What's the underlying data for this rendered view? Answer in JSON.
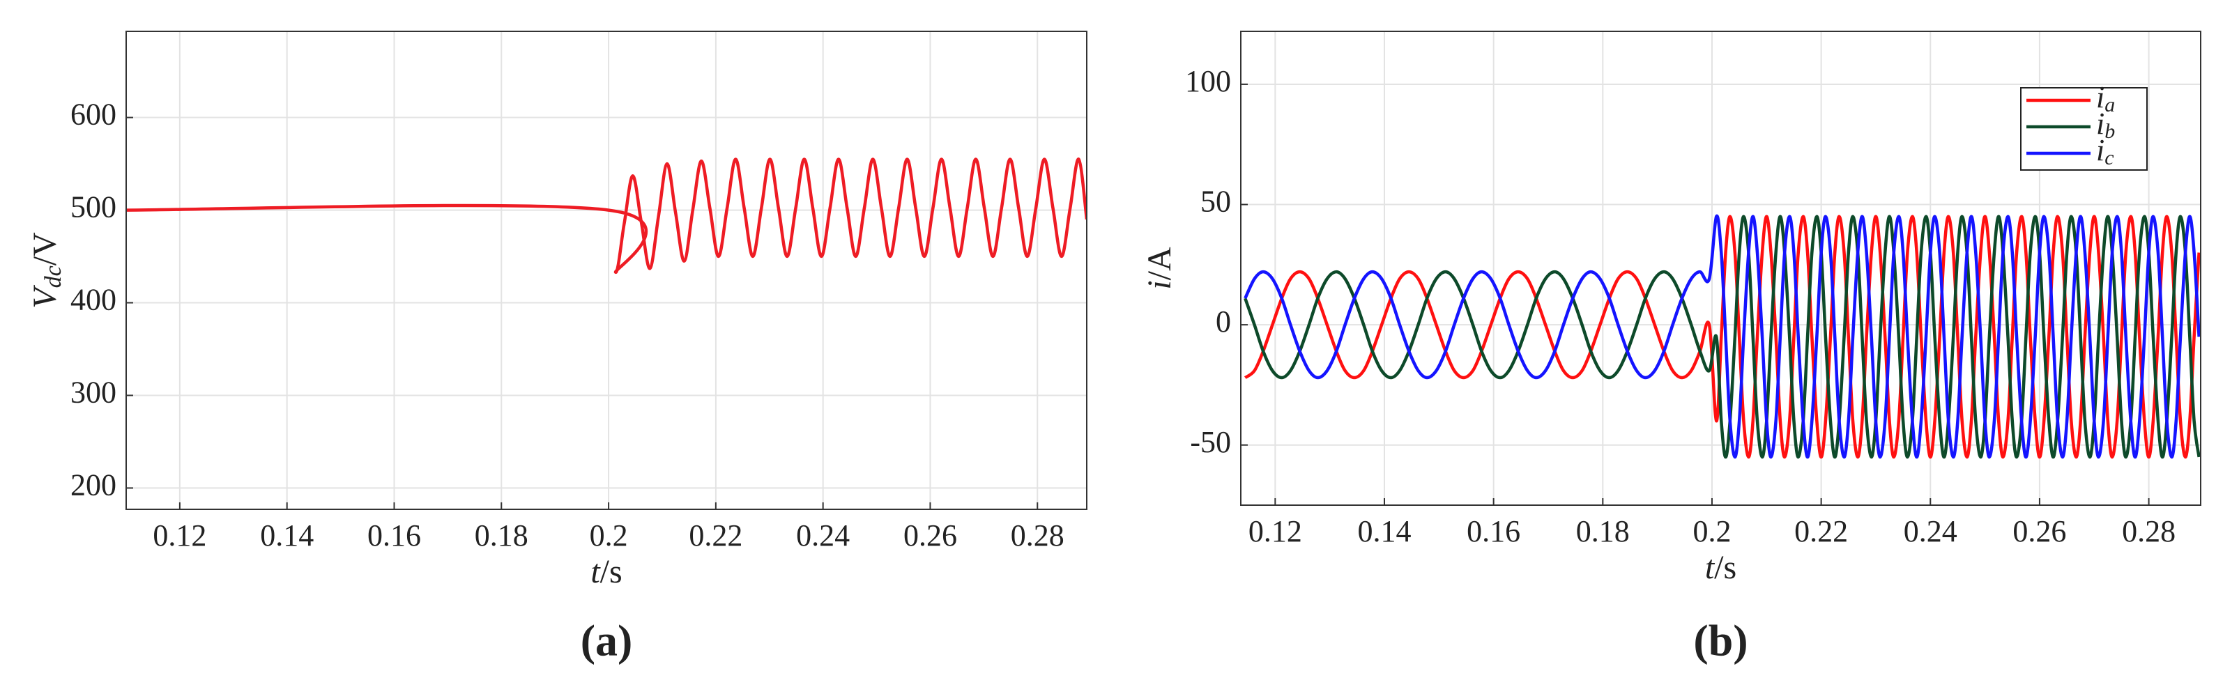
{
  "chart_data": [
    {
      "type": "line",
      "label": "(a)",
      "xlabel": {
        "symbol": "t",
        "unit": "/s"
      },
      "ylabel": {
        "symbol": "V",
        "subscript": "dc",
        "unit": "/V"
      },
      "x": [
        0.11,
        0.2,
        0.2013,
        0.2029,
        0.2045,
        0.2061,
        0.2077,
        0.2093,
        0.2109,
        0.2125,
        0.2141,
        0.2157,
        0.2173,
        0.2189,
        0.2205,
        0.2221,
        0.2237,
        0.2253,
        0.2269,
        0.2285,
        0.2301,
        0.2317,
        0.2333,
        0.2349,
        0.2365,
        0.2381,
        0.2397,
        0.2413,
        0.2429,
        0.2445,
        0.2461,
        0.2477,
        0.2493,
        0.2509,
        0.2525,
        0.2541,
        0.2557,
        0.2573,
        0.2589,
        0.2605,
        0.2621,
        0.2637,
        0.2653,
        0.2669,
        0.2685,
        0.2701,
        0.2717,
        0.2733,
        0.2749,
        0.2765,
        0.2781,
        0.2797,
        0.2813,
        0.2829,
        0.2845,
        0.2861,
        0.2877,
        0.2892
      ],
      "series": [
        {
          "color": "#ee1c24",
          "values": [
            500,
            500,
            433,
            485,
            537,
            487,
            437,
            493,
            550,
            497,
            445,
            500,
            553,
            502,
            450,
            502,
            555,
            502,
            450,
            502,
            555,
            502,
            450,
            502,
            555,
            502,
            450,
            502,
            555,
            502,
            450,
            502,
            555,
            502,
            450,
            502,
            555,
            502,
            450,
            502,
            555,
            502,
            450,
            502,
            555,
            502,
            450,
            502,
            555,
            502,
            450,
            502,
            555,
            502,
            450,
            502,
            555,
            490
          ]
        }
      ],
      "xlim": [
        0.11,
        0.2892
      ],
      "ylim": [
        177,
        693
      ],
      "xticks": [
        0.12,
        0.14,
        0.16,
        0.18,
        0.2,
        0.22,
        0.24,
        0.26,
        0.28
      ],
      "yticks": [
        200,
        300,
        400,
        500,
        600
      ],
      "grid": true
    },
    {
      "type": "line",
      "label": "(b)",
      "xlabel": {
        "symbol": "t",
        "unit": "/s"
      },
      "ylabel": {
        "symbol": "i",
        "unit": "/A"
      },
      "x": [
        0.1145,
        0.1162,
        0.1178,
        0.1195,
        0.1212,
        0.1228,
        0.1245,
        0.1262,
        0.1278,
        0.1295,
        0.1312,
        0.1328,
        0.1345,
        0.1362,
        0.1378,
        0.1395,
        0.1412,
        0.1428,
        0.1445,
        0.1462,
        0.1478,
        0.1495,
        0.1512,
        0.1528,
        0.1545,
        0.1562,
        0.1578,
        0.1595,
        0.1612,
        0.1628,
        0.1645,
        0.1662,
        0.1678,
        0.1695,
        0.1712,
        0.1728,
        0.1745,
        0.1762,
        0.1778,
        0.1795,
        0.1812,
        0.1828,
        0.1845,
        0.1862,
        0.1878,
        0.1895,
        0.1912,
        0.1928,
        0.1945,
        0.1962,
        0.1978,
        0.1995,
        0.2008,
        0.2017,
        0.2025,
        0.2033,
        0.2042,
        0.205,
        0.2058,
        0.2067,
        0.2075,
        0.2083,
        0.2092,
        0.21,
        0.2108,
        0.2117,
        0.2125,
        0.2133,
        0.2142,
        0.215,
        0.2158,
        0.2167,
        0.2175,
        0.2183,
        0.2192,
        0.22,
        0.2208,
        0.2217,
        0.2225,
        0.2233,
        0.2242,
        0.225,
        0.2258,
        0.2267,
        0.2275,
        0.2283,
        0.2292,
        0.23,
        0.2308,
        0.2317,
        0.2325,
        0.2333,
        0.2342,
        0.235,
        0.2358,
        0.2367,
        0.2375,
        0.2383,
        0.2392,
        0.24,
        0.2408,
        0.2417,
        0.2425,
        0.2433,
        0.2442,
        0.245,
        0.2458,
        0.2467,
        0.2475,
        0.2483,
        0.2492,
        0.25,
        0.2508,
        0.2517,
        0.2525,
        0.2533,
        0.2542,
        0.255,
        0.2558,
        0.2567,
        0.2575,
        0.2583,
        0.2592,
        0.26,
        0.2608,
        0.2617,
        0.2625,
        0.2633,
        0.2642,
        0.265,
        0.2658,
        0.2667,
        0.2675,
        0.2683,
        0.2692,
        0.27,
        0.2708,
        0.2717,
        0.2725,
        0.2733,
        0.2742,
        0.275,
        0.2758,
        0.2767,
        0.2775,
        0.2783,
        0.2792,
        0.28,
        0.2808,
        0.2817,
        0.2825,
        0.2833,
        0.2842,
        0.285,
        0.2858,
        0.2867,
        0.2875,
        0.2883,
        0.2892
      ],
      "series": [
        {
          "name": "ia",
          "color": "#ff1010",
          "values": [
            -22,
            -19.1,
            -11,
            0,
            11,
            19.1,
            22,
            19.1,
            11,
            0,
            -11,
            -19.1,
            -22,
            -19.1,
            -11,
            0,
            11,
            19.1,
            22,
            19.1,
            11,
            0,
            -11,
            -19.1,
            -22,
            -19.1,
            -11,
            0,
            11,
            19.1,
            22,
            19.1,
            11,
            0,
            -11,
            -19.1,
            -22,
            -19.1,
            -11,
            0,
            11,
            19.1,
            22,
            19.1,
            11,
            0,
            -11,
            -19.1,
            -22,
            -19.1,
            -11,
            0,
            -40,
            -5,
            30,
            45,
            30,
            -5,
            -40,
            -55,
            -40,
            -5,
            30,
            45,
            30,
            -5,
            -40,
            -55,
            -40,
            -5,
            30,
            45,
            30,
            -5,
            -40,
            -55,
            -40,
            -5,
            30,
            45,
            30,
            -5,
            -40,
            -55,
            -40,
            -5,
            30,
            45,
            30,
            -5,
            -40,
            -55,
            -40,
            -5,
            30,
            45,
            30,
            -5,
            -40,
            -55,
            -40,
            -5,
            30,
            45,
            30,
            -5,
            -40,
            -55,
            -40,
            -5,
            30,
            45,
            30,
            -5,
            -40,
            -55,
            -40,
            -5,
            30,
            45,
            30,
            -5,
            -40,
            -55,
            -40,
            -5,
            30,
            45,
            30,
            -5,
            -40,
            -55,
            -40,
            -5,
            30,
            45,
            30,
            -5,
            -40,
            -55,
            -40,
            -5,
            30,
            45,
            30,
            -5,
            -40,
            -55,
            -40,
            -5,
            30,
            45,
            30,
            -5,
            -40,
            -55,
            -40,
            -5,
            30
          ]
        },
        {
          "name": "ib",
          "color": "#0d4a2a",
          "values": [
            11,
            0,
            -11,
            -19.1,
            -22,
            -19.1,
            -11,
            0,
            11,
            19.1,
            22,
            19.1,
            11,
            0,
            -11,
            -19.1,
            -22,
            -19.1,
            -11,
            0,
            11,
            19.1,
            22,
            19.1,
            11,
            0,
            -11,
            -19.1,
            -22,
            -19.1,
            -11,
            0,
            11,
            19.1,
            22,
            19.1,
            11,
            0,
            -11,
            -19.1,
            -22,
            -19.1,
            -11,
            0,
            11,
            19.1,
            22,
            19.1,
            11,
            0,
            -11,
            -19.1,
            -5,
            -40,
            -55,
            -40,
            -5,
            30,
            45,
            30,
            -5,
            -40,
            -55,
            -40,
            -5,
            30,
            45,
            30,
            -5,
            -40,
            -55,
            -40,
            -5,
            30,
            45,
            30,
            -5,
            -40,
            -55,
            -40,
            -5,
            30,
            45,
            30,
            -5,
            -40,
            -55,
            -40,
            -5,
            30,
            45,
            30,
            -5,
            -40,
            -55,
            -40,
            -5,
            30,
            45,
            30,
            -5,
            -40,
            -55,
            -40,
            -5,
            30,
            45,
            30,
            -5,
            -40,
            -55,
            -40,
            -5,
            30,
            45,
            30,
            -5,
            -40,
            -55,
            -40,
            -5,
            30,
            45,
            30,
            -5,
            -40,
            -55,
            -40,
            -5,
            30,
            45,
            30,
            -5,
            -40,
            -55,
            -40,
            -5,
            30,
            45,
            30,
            -5,
            -40,
            -55,
            -40,
            -5,
            30,
            45,
            30,
            -5,
            -40,
            -55,
            -40,
            -5,
            30,
            45,
            30,
            -5,
            -40,
            -55
          ]
        },
        {
          "name": "ic",
          "color": "#1414ff",
          "values": [
            11,
            19.1,
            22,
            19.1,
            11,
            0,
            -11,
            -19.1,
            -22,
            -19.1,
            -11,
            0,
            11,
            19.1,
            22,
            19.1,
            11,
            0,
            -11,
            -19.1,
            -22,
            -19.1,
            -11,
            0,
            11,
            19.1,
            22,
            19.1,
            11,
            0,
            -11,
            -19.1,
            -22,
            -19.1,
            -11,
            0,
            11,
            19.1,
            22,
            19.1,
            11,
            0,
            -11,
            -19.1,
            -22,
            -19.1,
            -11,
            0,
            11,
            19.1,
            22,
            19.1,
            45,
            30,
            -5,
            -40,
            -55,
            -40,
            -5,
            30,
            45,
            30,
            -5,
            -40,
            -55,
            -40,
            -5,
            30,
            45,
            30,
            -5,
            -40,
            -55,
            -40,
            -5,
            30,
            45,
            30,
            -5,
            -40,
            -55,
            -40,
            -5,
            30,
            45,
            30,
            -5,
            -40,
            -55,
            -40,
            -5,
            30,
            45,
            30,
            -5,
            -40,
            -55,
            -40,
            -5,
            30,
            45,
            30,
            -5,
            -40,
            -55,
            -40,
            -5,
            30,
            45,
            30,
            -5,
            -40,
            -55,
            -40,
            -5,
            30,
            45,
            30,
            -5,
            -40,
            -55,
            -40,
            -5,
            30,
            45,
            30,
            -5,
            -40,
            -55,
            -40,
            -5,
            30,
            45,
            30,
            -5,
            -40,
            -55,
            -40,
            -5,
            30,
            45,
            30,
            -5,
            -40,
            -55,
            -40,
            -5,
            30,
            45,
            30,
            -5,
            -40,
            -55,
            -40,
            -5,
            30,
            45,
            30,
            -5
          ]
        }
      ],
      "xlim": [
        0.1137,
        0.2895
      ],
      "ylim": [
        -75,
        122
      ],
      "xticks": [
        0.12,
        0.14,
        0.16,
        0.18,
        0.2,
        0.22,
        0.24,
        0.26,
        0.28
      ],
      "yticks": [
        -50,
        0,
        50,
        100
      ],
      "grid": true,
      "legend": "upper right"
    }
  ]
}
